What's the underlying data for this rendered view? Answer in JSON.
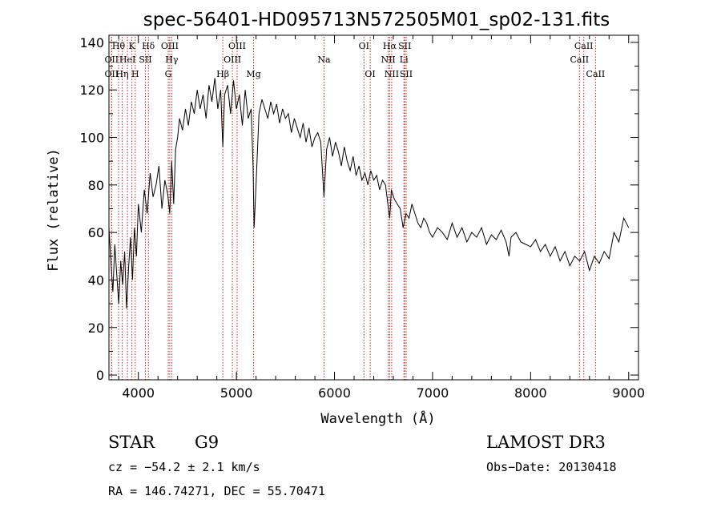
{
  "chart_data": {
    "type": "line",
    "title": "spec-56401-HD095713N572505M01_sp02-131.fits",
    "xlabel": "Wavelength (Å)",
    "ylabel": "Flux (relative)",
    "xlim": [
      3700,
      9100
    ],
    "ylim": [
      -2,
      143
    ],
    "xticks": [
      4000,
      5000,
      6000,
      7000,
      8000,
      9000
    ],
    "yticks": [
      0,
      20,
      40,
      60,
      80,
      100,
      120,
      140
    ],
    "series": [
      {
        "name": "flux",
        "color": "#000000",
        "x": [
          3700,
          3720,
          3740,
          3760,
          3780,
          3800,
          3820,
          3840,
          3860,
          3880,
          3900,
          3920,
          3940,
          3960,
          3980,
          4000,
          4030,
          4060,
          4090,
          4120,
          4150,
          4180,
          4210,
          4240,
          4270,
          4300,
          4320,
          4340,
          4360,
          4380,
          4400,
          4420,
          4450,
          4480,
          4510,
          4540,
          4570,
          4600,
          4630,
          4660,
          4690,
          4720,
          4750,
          4780,
          4810,
          4840,
          4861,
          4880,
          4910,
          4940,
          4970,
          5000,
          5030,
          5060,
          5090,
          5120,
          5150,
          5170,
          5180,
          5200,
          5230,
          5260,
          5290,
          5320,
          5350,
          5380,
          5410,
          5440,
          5470,
          5500,
          5530,
          5560,
          5590,
          5620,
          5650,
          5680,
          5710,
          5740,
          5770,
          5800,
          5830,
          5860,
          5893,
          5920,
          5950,
          5980,
          6010,
          6040,
          6070,
          6100,
          6130,
          6160,
          6190,
          6220,
          6250,
          6280,
          6310,
          6340,
          6370,
          6400,
          6430,
          6460,
          6490,
          6520,
          6550,
          6563,
          6580,
          6610,
          6640,
          6670,
          6700,
          6730,
          6760,
          6790,
          6820,
          6850,
          6880,
          6910,
          6940,
          6970,
          7000,
          7050,
          7100,
          7150,
          7200,
          7250,
          7300,
          7350,
          7400,
          7450,
          7500,
          7550,
          7600,
          7650,
          7700,
          7750,
          7780,
          7800,
          7850,
          7900,
          7950,
          8000,
          8050,
          8100,
          8150,
          8200,
          8250,
          8300,
          8350,
          8400,
          8450,
          8500,
          8550,
          8600,
          8650,
          8700,
          8750,
          8800,
          8850,
          8900,
          8950,
          9000
        ],
        "values": [
          62,
          48,
          35,
          55,
          42,
          30,
          48,
          38,
          52,
          28,
          45,
          58,
          40,
          62,
          50,
          72,
          60,
          78,
          68,
          85,
          75,
          80,
          88,
          70,
          82,
          76,
          68,
          90,
          72,
          95,
          100,
          108,
          103,
          112,
          105,
          115,
          110,
          120,
          112,
          118,
          108,
          122,
          115,
          125,
          112,
          120,
          96,
          118,
          122,
          110,
          124,
          112,
          118,
          105,
          120,
          108,
          112,
          88,
          62,
          80,
          110,
          116,
          112,
          108,
          115,
          110,
          114,
          106,
          112,
          108,
          110,
          102,
          108,
          104,
          100,
          106,
          98,
          104,
          96,
          100,
          102,
          98,
          75,
          95,
          100,
          92,
          98,
          94,
          88,
          96,
          90,
          86,
          92,
          84,
          88,
          82,
          85,
          80,
          86,
          82,
          84,
          78,
          82,
          80,
          70,
          66,
          78,
          74,
          72,
          70,
          62,
          68,
          66,
          72,
          68,
          64,
          62,
          66,
          64,
          60,
          58,
          62,
          60,
          57,
          64,
          58,
          62,
          56,
          60,
          58,
          62,
          55,
          59,
          57,
          61,
          56,
          50,
          58,
          60,
          56,
          55,
          54,
          57,
          52,
          55,
          50,
          54,
          48,
          52,
          46,
          50,
          48,
          52,
          44,
          50,
          47,
          52,
          49,
          60,
          56,
          66,
          62
        ]
      }
    ],
    "line_markers": [
      {
        "label": "OII",
        "wavelength": 3727,
        "row": 1
      },
      {
        "label": "Hθ",
        "wavelength": 3798,
        "row": 0
      },
      {
        "label": "OII",
        "wavelength": 3727,
        "row": 2
      },
      {
        "label": "Hη",
        "wavelength": 3835,
        "row": 2
      },
      {
        "label": "HeI",
        "wavelength": 3889,
        "row": 1
      },
      {
        "label": "K",
        "wavelength": 3934,
        "row": 0
      },
      {
        "label": "H",
        "wavelength": 3968,
        "row": 2
      },
      {
        "label": "SII",
        "wavelength": 4072,
        "row": 1
      },
      {
        "label": "Hδ",
        "wavelength": 4102,
        "row": 0
      },
      {
        "label": "OIII",
        "wavelength": 4320,
        "row": 0
      },
      {
        "label": "Hγ",
        "wavelength": 4340,
        "row": 1
      },
      {
        "label": "G",
        "wavelength": 4305,
        "row": 2
      },
      {
        "label": "Hβ",
        "wavelength": 4861,
        "row": 2
      },
      {
        "label": "OIII",
        "wavelength": 4959,
        "row": 1
      },
      {
        "label": "OIII",
        "wavelength": 5007,
        "row": 0
      },
      {
        "label": "Mg",
        "wavelength": 5175,
        "row": 2
      },
      {
        "label": "Na",
        "wavelength": 5893,
        "row": 1
      },
      {
        "label": "OI",
        "wavelength": 6300,
        "row": 0
      },
      {
        "label": "OI",
        "wavelength": 6364,
        "row": 2
      },
      {
        "label": "Hα",
        "wavelength": 6563,
        "row": 0
      },
      {
        "label": "NII",
        "wavelength": 6548,
        "row": 1
      },
      {
        "label": "NII",
        "wavelength": 6583,
        "row": 2
      },
      {
        "label": "SII",
        "wavelength": 6716,
        "row": 0
      },
      {
        "label": "Li",
        "wavelength": 6708,
        "row": 1
      },
      {
        "label": "SII",
        "wavelength": 6731,
        "row": 2
      },
      {
        "label": "CaII",
        "wavelength": 8542,
        "row": 0
      },
      {
        "label": "CaII",
        "wavelength": 8498,
        "row": 1
      },
      {
        "label": "CaII",
        "wavelength": 8662,
        "row": 2
      }
    ],
    "marker_color": "#cc2222"
  },
  "info": {
    "object_type": "STAR",
    "subclass": "G9",
    "survey": "LAMOST DR3",
    "cz": "cz = −54.2 ± 2.1 km/s",
    "obs_date": "Obs−Date: 20130418",
    "coords": "RA = 146.74271, DEC =  55.70471"
  }
}
